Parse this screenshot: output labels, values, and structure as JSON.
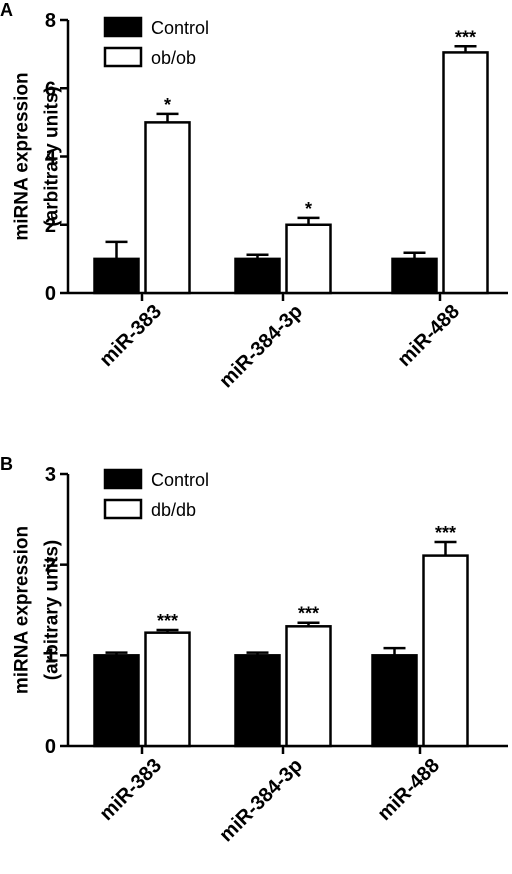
{
  "chart_data": [
    {
      "type": "bar",
      "panel_label": "A",
      "ylabel": [
        "miRNA expression",
        "(arbitrary units)"
      ],
      "ylim": [
        0,
        8
      ],
      "yticks": [
        0,
        2,
        4,
        6,
        8
      ],
      "categories": [
        "miR-383",
        "miR-384-3p",
        "miR-488"
      ],
      "series": [
        {
          "name": "Control",
          "values": [
            1.0,
            1.0,
            1.0
          ],
          "errors": [
            0.5,
            0.12,
            0.18
          ],
          "fill": "#000000"
        },
        {
          "name": "ob/ob",
          "values": [
            5.0,
            2.0,
            7.05
          ],
          "errors": [
            0.25,
            0.2,
            0.18
          ],
          "fill": "#ffffff"
        }
      ],
      "significance": [
        "*",
        "*",
        "***"
      ],
      "legend_position": "top-left"
    },
    {
      "type": "bar",
      "panel_label": "B",
      "ylabel": [
        "miRNA expression",
        "(arbitrary units)"
      ],
      "ylim": [
        0,
        3
      ],
      "yticks": [
        0,
        1,
        2,
        3
      ],
      "categories": [
        "miR-383",
        "miR-384-3p",
        "miR-488"
      ],
      "series": [
        {
          "name": "Control",
          "values": [
            1.0,
            1.0,
            1.0
          ],
          "errors": [
            0.03,
            0.03,
            0.08
          ],
          "fill": "#000000"
        },
        {
          "name": "db/db",
          "values": [
            1.25,
            1.32,
            2.1
          ],
          "errors": [
            0.03,
            0.04,
            0.15
          ],
          "fill": "#ffffff"
        }
      ],
      "significance": [
        "***",
        "***",
        "***"
      ],
      "legend_position": "top-left"
    }
  ]
}
